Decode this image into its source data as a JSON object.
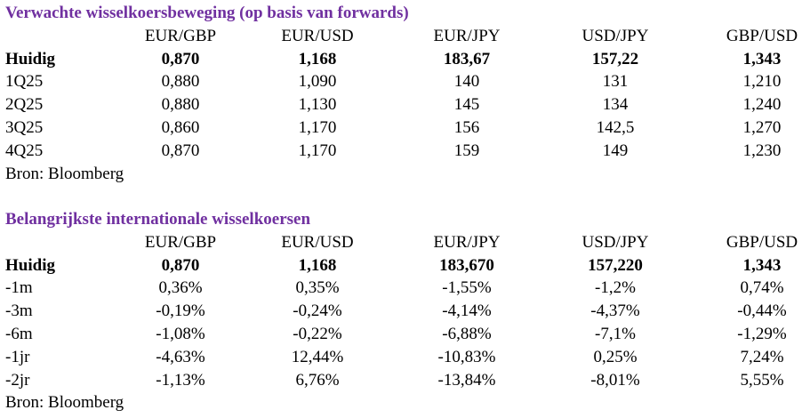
{
  "sections": [
    {
      "title": "Verwachte wisselkoersbeweging (op basis van forwards)",
      "header": [
        "EUR/GBP",
        "EUR/USD",
        "EUR/JPY",
        "USD/JPY",
        "GBP/USD"
      ],
      "rows": [
        [
          "Huidig",
          "0,870",
          "1,168",
          "183,67",
          "157,22",
          "1,343"
        ],
        [
          "1Q25",
          "0,880",
          "1,090",
          "140",
          "131",
          "1,210"
        ],
        [
          "2Q25",
          "0,880",
          "1,130",
          "145",
          "134",
          "1,240"
        ],
        [
          "3Q25",
          "0,860",
          "1,170",
          "156",
          "142,5",
          "1,270"
        ],
        [
          "4Q25",
          "0,870",
          "1,170",
          "159",
          "149",
          "1,230"
        ]
      ],
      "source": "Bron: Bloomberg"
    },
    {
      "title": "Belangrijkste internationale wisselkoersen",
      "header": [
        "EUR/GBP",
        "EUR/USD",
        "EUR/JPY",
        "USD/JPY",
        "GBP/USD"
      ],
      "rows": [
        [
          "Huidig",
          "0,870",
          "1,168",
          "183,670",
          "157,220",
          "1,343"
        ],
        [
          "-1m",
          "0,36%",
          "0,35%",
          "-1,55%",
          "-1,2%",
          "0,74%"
        ],
        [
          "-3m",
          "-0,19%",
          "-0,24%",
          "-4,14%",
          "-4,37%",
          "-0,44%"
        ],
        [
          "-6m",
          "-1,08%",
          "-0,22%",
          "-6,88%",
          "-7,1%",
          "-1,29%"
        ],
        [
          "-1jr",
          "-4,63%",
          "12,44%",
          "-10,83%",
          "0,25%",
          "7,24%"
        ],
        [
          "-2jr",
          "-1,13%",
          "6,76%",
          "-13,84%",
          "-8,01%",
          "5,55%"
        ]
      ],
      "source": "Bron: Bloomberg"
    }
  ]
}
